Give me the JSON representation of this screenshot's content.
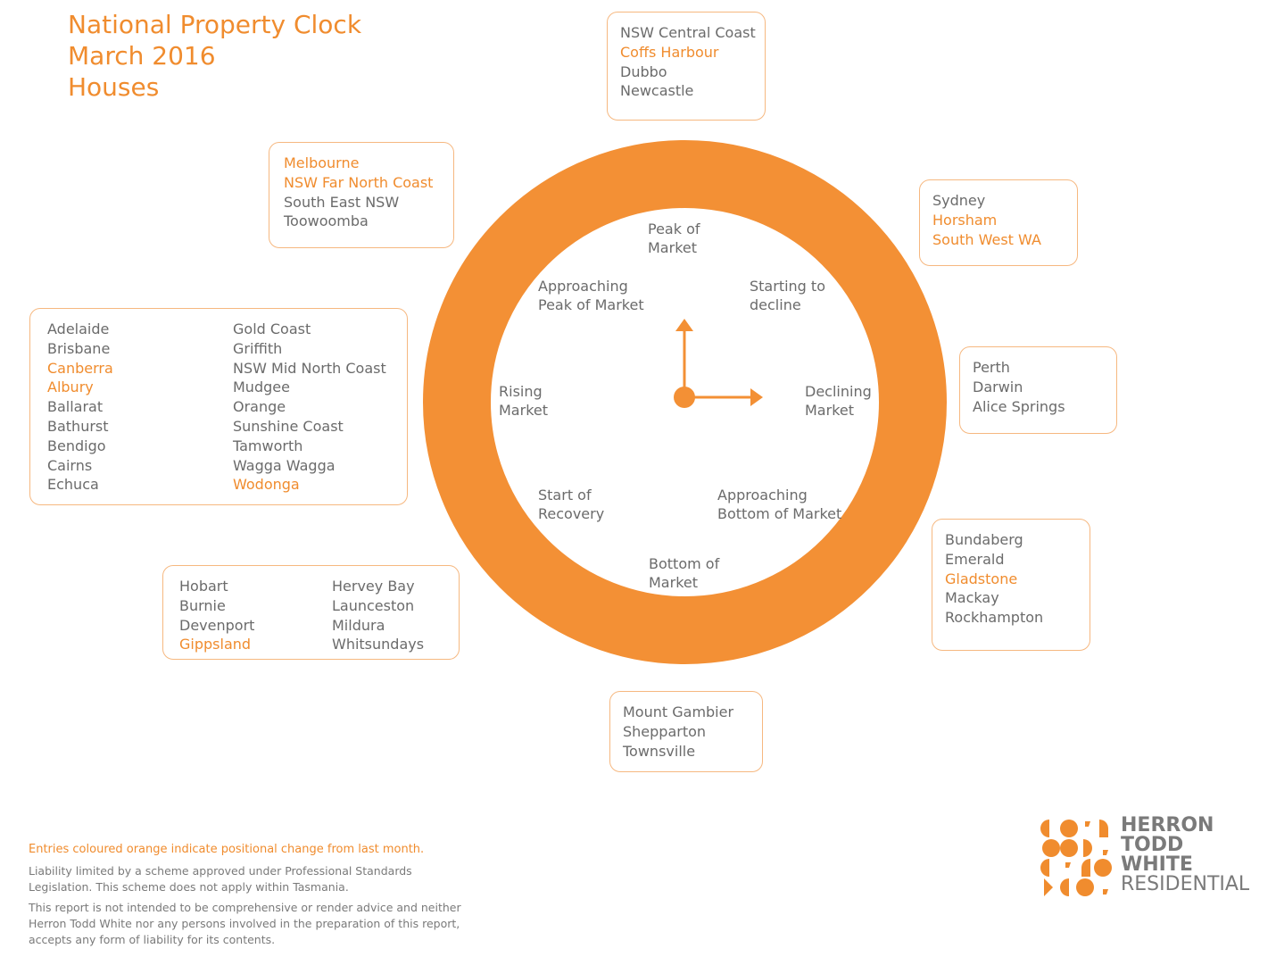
{
  "header": {
    "line1": "National Property Clock",
    "line2": "March 2016",
    "line3": "Houses"
  },
  "colors": {
    "accent": "#f08c2e",
    "ring": "#f39035",
    "box_border": "#f6b880",
    "text": "#6b6b6b"
  },
  "clock": {
    "phases": {
      "peak": "Peak of\nMarket",
      "starting_decline": "Starting to\ndecline",
      "declining": "Declining\nMarket",
      "approaching_bottom": "Approaching\nBottom of Market",
      "bottom": "Bottom of\nMarket",
      "start_recovery": "Start of\nRecovery",
      "rising": "Rising\nMarket",
      "approaching_peak": "Approaching\nPeak of Market"
    },
    "hand_time": "3 o'clock"
  },
  "groups": [
    {
      "id": "top",
      "columns": [
        [
          {
            "name": "NSW Central Coast",
            "changed": false
          },
          {
            "name": "Coffs Harbour",
            "changed": true
          },
          {
            "name": "Dubbo",
            "changed": false
          },
          {
            "name": "Newcastle",
            "changed": false
          }
        ]
      ]
    },
    {
      "id": "top-right",
      "columns": [
        [
          {
            "name": "Sydney",
            "changed": false
          },
          {
            "name": "Horsham",
            "changed": true
          },
          {
            "name": "South West WA",
            "changed": true
          }
        ]
      ]
    },
    {
      "id": "right",
      "columns": [
        [
          {
            "name": "Perth",
            "changed": false
          },
          {
            "name": "Darwin",
            "changed": false
          },
          {
            "name": "Alice Springs",
            "changed": false
          }
        ]
      ]
    },
    {
      "id": "bottom-right",
      "columns": [
        [
          {
            "name": "Bundaberg",
            "changed": false
          },
          {
            "name": "Emerald",
            "changed": false
          },
          {
            "name": "Gladstone",
            "changed": true
          },
          {
            "name": "Mackay",
            "changed": false
          },
          {
            "name": "Rockhampton",
            "changed": false
          }
        ]
      ]
    },
    {
      "id": "bottom",
      "columns": [
        [
          {
            "name": "Mount Gambier",
            "changed": false
          },
          {
            "name": "Shepparton",
            "changed": false
          },
          {
            "name": "Townsville",
            "changed": false
          }
        ]
      ]
    },
    {
      "id": "bottom-left",
      "columns": [
        [
          {
            "name": "Hobart",
            "changed": false
          },
          {
            "name": "Burnie",
            "changed": false
          },
          {
            "name": "Devenport",
            "changed": false
          },
          {
            "name": "Gippsland",
            "changed": true
          }
        ],
        [
          {
            "name": "Hervey Bay",
            "changed": false
          },
          {
            "name": "Launceston",
            "changed": false
          },
          {
            "name": "Mildura",
            "changed": false
          },
          {
            "name": "Whitsundays",
            "changed": false
          }
        ]
      ]
    },
    {
      "id": "left",
      "columns": [
        [
          {
            "name": "Adelaide",
            "changed": false
          },
          {
            "name": "Brisbane",
            "changed": false
          },
          {
            "name": "Canberra",
            "changed": true
          },
          {
            "name": "Albury",
            "changed": true
          },
          {
            "name": "Ballarat",
            "changed": false
          },
          {
            "name": "Bathurst",
            "changed": false
          },
          {
            "name": "Bendigo",
            "changed": false
          },
          {
            "name": "Cairns",
            "changed": false
          },
          {
            "name": "Echuca",
            "changed": false
          }
        ],
        [
          {
            "name": "Gold Coast",
            "changed": false
          },
          {
            "name": "Griffith",
            "changed": false
          },
          {
            "name": "NSW Mid North Coast",
            "changed": false
          },
          {
            "name": "Mudgee",
            "changed": false
          },
          {
            "name": "Orange",
            "changed": false
          },
          {
            "name": "Sunshine Coast",
            "changed": false
          },
          {
            "name": "Tamworth",
            "changed": false
          },
          {
            "name": "Wagga Wagga",
            "changed": false
          },
          {
            "name": "Wodonga",
            "changed": true
          }
        ]
      ]
    },
    {
      "id": "top-left",
      "columns": [
        [
          {
            "name": "Melbourne",
            "changed": true
          },
          {
            "name": "NSW Far North Coast",
            "changed": true
          },
          {
            "name": "South East NSW",
            "changed": false
          },
          {
            "name": "Toowoomba",
            "changed": false
          }
        ]
      ]
    }
  ],
  "footer": {
    "legend_note": "Entries coloured orange indicate positional change from last month.",
    "liability": "Liability limited by a scheme approved under Professional Standards\nLegislation. This scheme does not apply within Tasmania.",
    "disclaimer": "This report is not intended to be comprehensive or render advice and neither\nHerron Todd White nor any persons involved in the preparation of this report,\naccepts any form of liability for its contents."
  },
  "logo": {
    "line1": "HERRON",
    "line2": "TODD",
    "line3": "WHITE",
    "line4": "RESIDENTIAL"
  }
}
